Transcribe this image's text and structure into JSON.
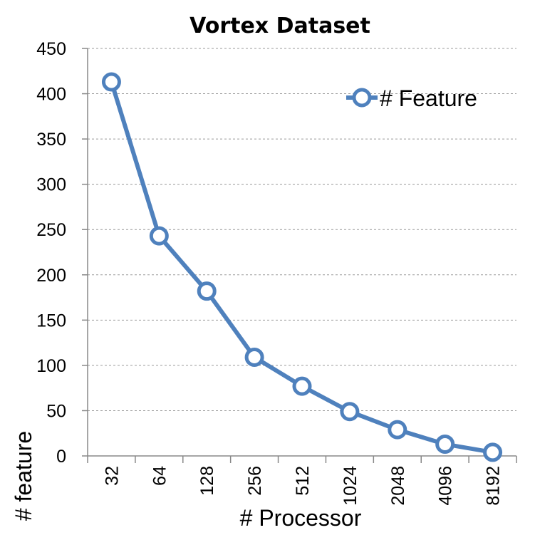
{
  "chart_data": {
    "type": "line",
    "title": "Vortex Dataset",
    "xlabel": "# Processor",
    "ylabel": "# feature",
    "categories": [
      "32",
      "64",
      "128",
      "256",
      "512",
      "1024",
      "2048",
      "4096",
      "8192"
    ],
    "series": [
      {
        "name": "# Feature",
        "values": [
          413,
          243,
          182,
          109,
          77,
          49,
          29,
          13,
          4
        ],
        "color": "#4f81bd"
      }
    ],
    "ylim": [
      0,
      450
    ],
    "yticks": [
      "0",
      "50",
      "100",
      "150",
      "200",
      "250",
      "300",
      "350",
      "400",
      "450"
    ],
    "grid": true,
    "legend_position": "top-right",
    "marker": "open-circle"
  }
}
